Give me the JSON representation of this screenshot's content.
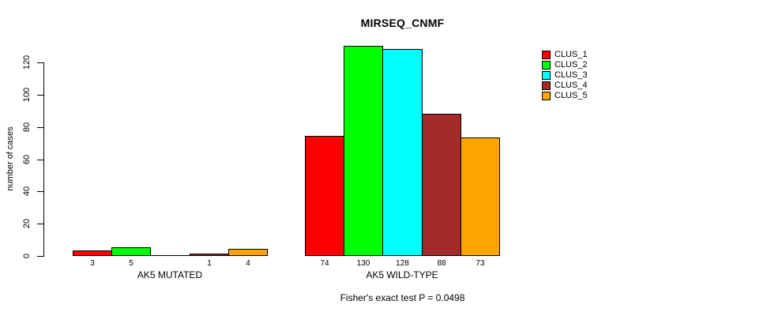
{
  "title": "MIRSEQ_CNMF",
  "footnote": "Fisher's exact test P = 0.0498",
  "chart_data": {
    "type": "bar",
    "title": "MIRSEQ_CNMF",
    "xlabel": "",
    "ylabel": "number of cases",
    "ylim": [
      0,
      130
    ],
    "yticks": [
      0,
      20,
      40,
      60,
      80,
      100,
      120
    ],
    "grid": false,
    "legend_position": "right-outside",
    "categories": [
      "AK5 MUTATED",
      "AK5 WILD-TYPE"
    ],
    "series": [
      {
        "name": "CLUS_1",
        "color": "#ff0000",
        "values": [
          3,
          74
        ]
      },
      {
        "name": "CLUS_2",
        "color": "#00ff00",
        "values": [
          5,
          130
        ]
      },
      {
        "name": "CLUS_3",
        "color": "#00ffff",
        "values": [
          0,
          128
        ]
      },
      {
        "name": "CLUS_4",
        "color": "#a52a2a",
        "values": [
          1,
          88
        ]
      },
      {
        "name": "CLUS_5",
        "color": "#ffa500",
        "values": [
          4,
          73
        ]
      }
    ],
    "bar_value_labels": [
      [
        "3",
        "5",
        "",
        "1",
        "4"
      ],
      [
        "74",
        "130",
        "128",
        "88",
        "73"
      ]
    ],
    "annotation": "Fisher's exact test P = 0.0498"
  }
}
